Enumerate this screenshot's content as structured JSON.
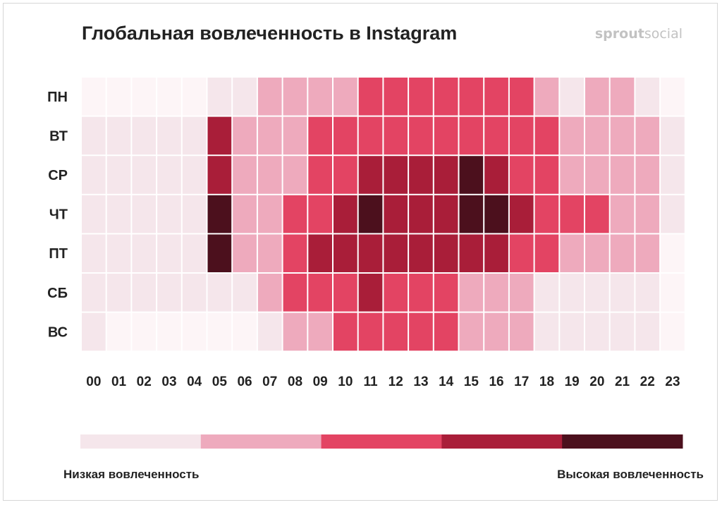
{
  "chart_data": {
    "type": "heatmap",
    "title": "Глобальная вовлеченность в Instagram",
    "brand": {
      "part1": "sprout",
      "part2": "social"
    },
    "rows": [
      "ПН",
      "ВТ",
      "СР",
      "ЧТ",
      "ПТ",
      "СБ",
      "ВС"
    ],
    "columns": [
      "00",
      "01",
      "02",
      "03",
      "04",
      "05",
      "06",
      "07",
      "08",
      "09",
      "10",
      "11",
      "12",
      "13",
      "14",
      "15",
      "16",
      "17",
      "18",
      "19",
      "20",
      "21",
      "22",
      "23"
    ],
    "levels": [
      [
        0,
        0,
        0,
        0,
        0,
        1,
        1,
        2,
        2,
        2,
        2,
        3,
        3,
        3,
        3,
        3,
        3,
        3,
        2,
        1,
        2,
        2,
        1,
        0
      ],
      [
        1,
        1,
        1,
        1,
        1,
        4,
        2,
        2,
        2,
        3,
        3,
        3,
        3,
        3,
        3,
        3,
        3,
        3,
        3,
        2,
        2,
        2,
        2,
        1
      ],
      [
        1,
        1,
        1,
        1,
        1,
        4,
        2,
        2,
        2,
        3,
        3,
        4,
        4,
        4,
        4,
        5,
        4,
        3,
        3,
        2,
        2,
        2,
        2,
        1
      ],
      [
        1,
        1,
        1,
        1,
        1,
        5,
        2,
        2,
        3,
        3,
        4,
        5,
        4,
        4,
        4,
        5,
        5,
        4,
        3,
        3,
        3,
        2,
        2,
        1
      ],
      [
        1,
        1,
        1,
        1,
        1,
        5,
        2,
        2,
        3,
        4,
        4,
        4,
        4,
        4,
        4,
        4,
        4,
        3,
        3,
        2,
        2,
        2,
        2,
        0
      ],
      [
        1,
        1,
        1,
        1,
        1,
        1,
        1,
        2,
        3,
        3,
        3,
        4,
        3,
        3,
        3,
        2,
        2,
        2,
        1,
        1,
        1,
        1,
        1,
        0
      ],
      [
        1,
        0,
        0,
        0,
        0,
        0,
        0,
        1,
        2,
        2,
        3,
        3,
        3,
        3,
        3,
        2,
        2,
        2,
        1,
        1,
        1,
        1,
        1,
        0
      ]
    ],
    "level_colors": [
      "#fdf5f7",
      "#f5e6eb",
      "#eeaabd",
      "#e34463",
      "#a91e39",
      "#4c101d"
    ],
    "legend": {
      "steps": [
        "#f5e6eb",
        "#eeaabd",
        "#e34463",
        "#a91e39",
        "#4c101d"
      ],
      "low_label": "Низкая вовлеченность",
      "high_label": "Высокая вовлеченность"
    }
  }
}
